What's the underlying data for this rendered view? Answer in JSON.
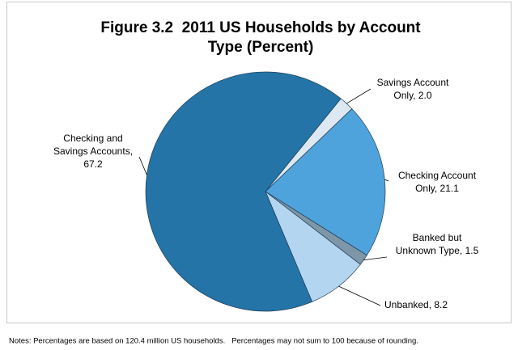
{
  "chart_data": {
    "type": "pie",
    "title": [
      "Figure 3.2  2011 US Households by Account",
      "Type (Percent)"
    ],
    "labels": [
      [
        "Savings Account",
        "Only, 2.0"
      ],
      [
        "Checking Account",
        "Only, 21.1"
      ],
      [
        "Banked but",
        "Unknown Type, 1.5"
      ],
      [
        "Unbanked, 8.2"
      ],
      [
        "Checking and",
        "Savings Accounts,",
        "67.2"
      ]
    ],
    "values": [
      2.0,
      21.1,
      1.5,
      8.2,
      67.2
    ],
    "colors": [
      "#dde8f2",
      "#4fa3dc",
      "#7d96a8",
      "#b4d5f0",
      "#2474a8"
    ],
    "note": "Notes: Percentages are based on 120.4 million US households.   Percentages may not sum to 100 because of rounding."
  }
}
